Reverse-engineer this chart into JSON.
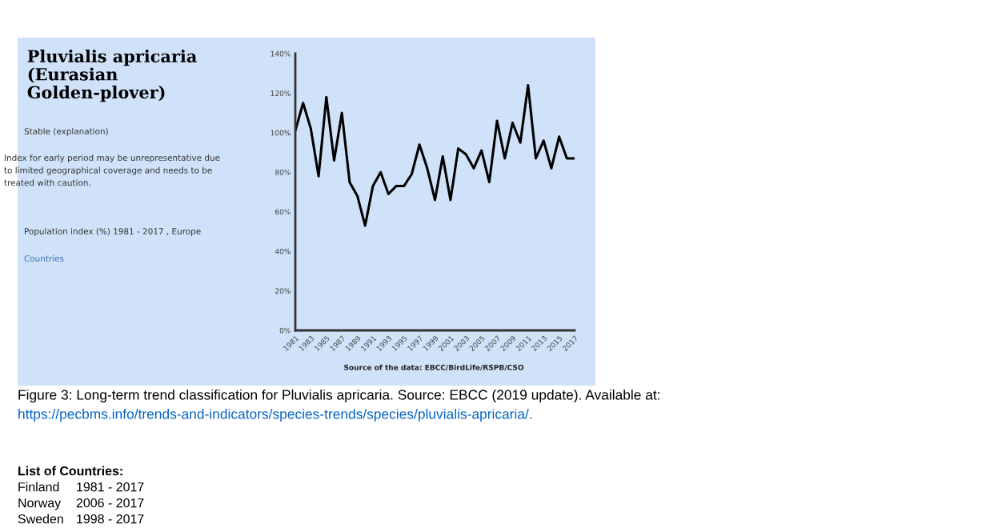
{
  "chart_data": {
    "type": "line",
    "title": "Pluvialis apricaria (Eurasian Golden-plover)",
    "x": [
      1981,
      1982,
      1983,
      1984,
      1985,
      1986,
      1987,
      1988,
      1989,
      1990,
      1991,
      1992,
      1993,
      1994,
      1995,
      1996,
      1997,
      1998,
      1999,
      2000,
      2001,
      2002,
      2003,
      2004,
      2005,
      2006,
      2007,
      2008,
      2009,
      2010,
      2011,
      2012,
      2013,
      2014,
      2015,
      2016,
      2017
    ],
    "series": [
      {
        "color": "#000000",
        "values": [
          101,
          115,
          102,
          78,
          118,
          86,
          110,
          75,
          68,
          53,
          73,
          80,
          69,
          73,
          73,
          79,
          94,
          82,
          66,
          88,
          66,
          92,
          89,
          82,
          91,
          75,
          106,
          87,
          105,
          95,
          124,
          87,
          96,
          82,
          98,
          87,
          87
        ]
      }
    ],
    "xlim": [
      1981,
      2017
    ],
    "xticks": [
      1981,
      1983,
      1985,
      1987,
      1989,
      1991,
      1993,
      1995,
      1997,
      1999,
      2001,
      2003,
      2005,
      2007,
      2009,
      2011,
      2013,
      2015,
      2017
    ],
    "ylim": [
      0,
      140
    ],
    "yticks": [
      {
        "value": 0,
        "label": "0%"
      },
      {
        "value": 20,
        "label": "20%"
      },
      {
        "value": 40,
        "label": "40%"
      },
      {
        "value": 60,
        "label": "60%"
      },
      {
        "value": 80,
        "label": "80%"
      },
      {
        "value": 100,
        "label": "100%"
      },
      {
        "value": 120,
        "label": "120%"
      },
      {
        "value": 140,
        "label": "140%"
      }
    ],
    "grid": false,
    "marker": "none",
    "line_style": "solid",
    "annotations": [
      "Stable (explanation)",
      "Index for early period may be unrepresentative due to limited geographical coverage and needs to be treated with caution.",
      "Population index (%) 1981 - 2017 , Europe",
      "Countries",
      "Source of the data: EBCC/BirdLife/RSPB/CSO",
      "Figure 3: Long-term trend classification for Pluvialis apricaria. Source: EBCC (2019 update). Available at:",
      "https://pecbms.info/trends-and-indicators/species-trends/species/pluvialis-apricaria/.",
      "List of Countries:",
      "Finland",
      "1981 - 2017",
      "Norway",
      "2006 - 2017",
      "Sweden",
      "1998 - 2017"
    ]
  }
}
